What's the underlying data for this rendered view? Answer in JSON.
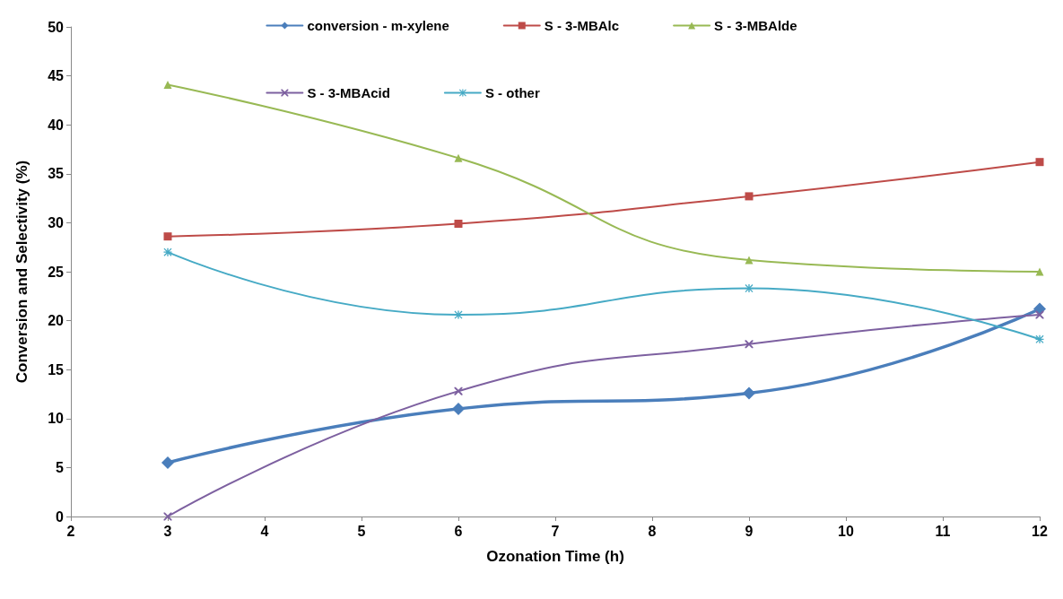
{
  "chart_data": {
    "type": "line",
    "xlabel": "Ozonation Time (h)",
    "ylabel": "Conversion and Selectivity (%)",
    "x": [
      3,
      6,
      9,
      12
    ],
    "xlim": [
      2,
      12
    ],
    "xticks": [
      2,
      3,
      4,
      5,
      6,
      7,
      8,
      9,
      10,
      11,
      12
    ],
    "ylim": [
      0,
      50
    ],
    "yticks": [
      0,
      5,
      10,
      15,
      20,
      25,
      30,
      35,
      40,
      45,
      50
    ],
    "grid": false,
    "legend": "top",
    "line_style": "solid",
    "series": [
      {
        "name": "conversion - m-xylene",
        "color": "#4a7ebb",
        "marker": "diamond",
        "values": [
          5.5,
          11.0,
          12.6,
          21.2
        ]
      },
      {
        "name": "S - 3-MBAlc",
        "color": "#be4b48",
        "marker": "square",
        "values": [
          28.6,
          29.9,
          32.7,
          36.2
        ]
      },
      {
        "name": "S - 3-MBAlde",
        "color": "#98b954",
        "marker": "triangle",
        "values": [
          44.1,
          36.6,
          26.2,
          25.0
        ]
      },
      {
        "name": "S - 3-MBAcid",
        "color": "#7d60a0",
        "marker": "cross",
        "values": [
          0,
          12.8,
          17.6,
          20.6
        ]
      },
      {
        "name": "S - other",
        "color": "#46aac5",
        "marker": "star",
        "values": [
          27.0,
          20.6,
          23.3,
          18.1
        ]
      }
    ]
  }
}
